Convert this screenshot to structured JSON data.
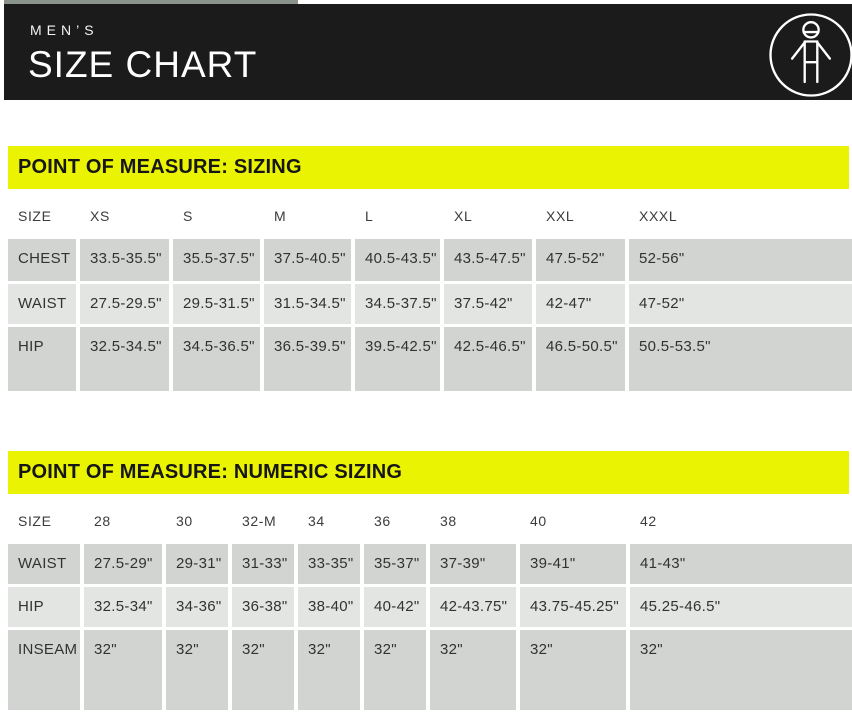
{
  "header": {
    "eyebrow": "MEN’S",
    "title": "SIZE CHART",
    "icon": "person-measure-icon"
  },
  "sizing_table": {
    "banner": "POINT OF MEASURE: SIZING",
    "columns": [
      "SIZE",
      "XS",
      "S",
      "M",
      "L",
      "XL",
      "XXL",
      "XXXL"
    ],
    "rows": [
      {
        "label": "CHEST",
        "values": [
          "33.5-35.5\"",
          "35.5-37.5\"",
          "37.5-40.5\"",
          "40.5-43.5\"",
          "43.5-47.5\"",
          "47.5-52\"",
          "52-56\""
        ]
      },
      {
        "label": "WAIST",
        "values": [
          "27.5-29.5\"",
          "29.5-31.5\"",
          "31.5-34.5\"",
          "34.5-37.5\"",
          "37.5-42\"",
          "42-47\"",
          "47-52\""
        ]
      },
      {
        "label": "HIP",
        "values": [
          "32.5-34.5\"",
          "34.5-36.5\"",
          "36.5-39.5\"",
          "39.5-42.5\"",
          "42.5-46.5\"",
          "46.5-50.5\"",
          "50.5-53.5\""
        ]
      }
    ]
  },
  "numeric_table": {
    "banner": "POINT OF MEASURE: NUMERIC SIZING",
    "columns": [
      "SIZE",
      "28",
      "30",
      "32-M",
      "34",
      "36",
      "38",
      "40",
      "42"
    ],
    "rows": [
      {
        "label": "WAIST",
        "values": [
          "27.5-29\"",
          "29-31\"",
          "31-33\"",
          "33-35\"",
          "35-37\"",
          "37-39\"",
          "39-41\"",
          "41-43\""
        ]
      },
      {
        "label": "HIP",
        "values": [
          "32.5-34\"",
          "34-36\"",
          "36-38\"",
          "38-40\"",
          "40-42\"",
          "42-43.75\"",
          "43.75-45.25\"",
          "45.25-46.5\""
        ]
      },
      {
        "label": "INSEAM",
        "values": [
          "32\"",
          "32\"",
          "32\"",
          "32\"",
          "32\"",
          "32\"",
          "32\"",
          "32\""
        ]
      }
    ]
  },
  "colors": {
    "header_bg": "#1b1b1b",
    "banner_bg": "#eaf402",
    "row_dark": "#d2d4d2",
    "row_light": "#e3e5e3",
    "text": "#313332"
  }
}
